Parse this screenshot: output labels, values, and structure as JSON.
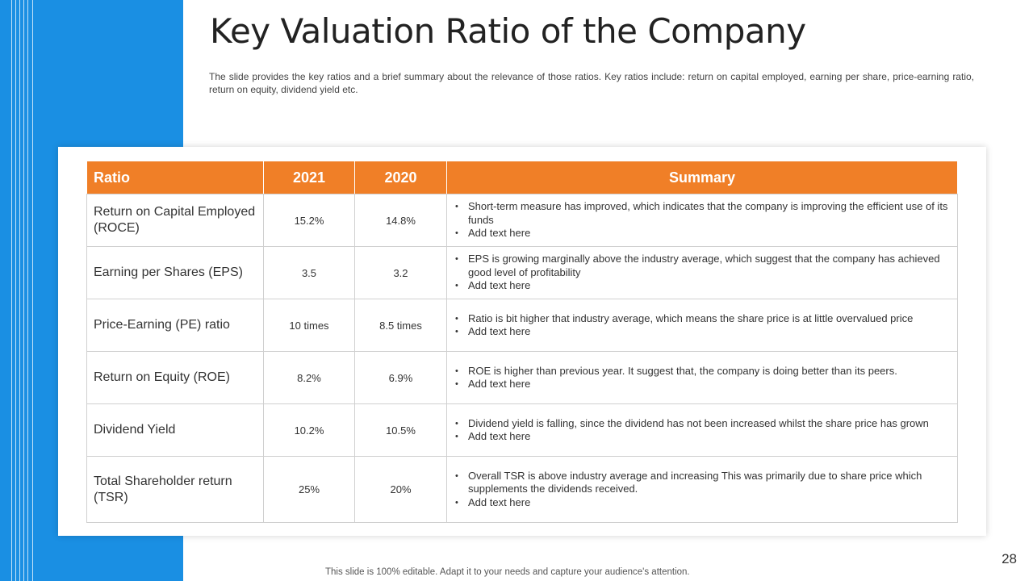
{
  "slide": {
    "title": "Key Valuation Ratio of the Company",
    "description": "The slide provides the key ratios and a brief summary about the relevance of those ratios. Key ratios include: return on capital employed, earning per share, price-earning ratio, return on equity, dividend yield etc.",
    "page_number": "28",
    "footer_note": "This slide is 100% editable. Adapt it to your needs and capture your audience's attention.",
    "colors": {
      "accent_orange": "#f07f27",
      "band_blue": "#1a8fe3"
    }
  },
  "table": {
    "headers": [
      "Ratio",
      "2021",
      "2020",
      "Summary"
    ],
    "rows": [
      {
        "name": "Return on Capital Employed (ROCE)",
        "y2021": "15.2%",
        "y2020": "14.8%",
        "summary": [
          "Short-term measure has improved, which indicates that the company is improving the efficient use of its funds",
          "Add text here"
        ]
      },
      {
        "name": "Earning per Shares (EPS)",
        "y2021": "3.5",
        "y2020": "3.2",
        "summary": [
          "EPS is growing marginally above the industry average, which suggest that the company has achieved good level of profitability",
          "Add text here"
        ]
      },
      {
        "name": "Price-Earning (PE) ratio",
        "y2021": "10 times",
        "y2020": "8.5 times",
        "summary": [
          "Ratio is bit higher that industry average, which means the share price is at little overvalued price",
          "Add text here"
        ]
      },
      {
        "name": "Return on Equity (ROE)",
        "y2021": "8.2%",
        "y2020": "6.9%",
        "summary": [
          "ROE is higher than previous year. It suggest that, the company is doing better than its peers.",
          "Add text here"
        ]
      },
      {
        "name": "Dividend Yield",
        "y2021": "10.2%",
        "y2020": "10.5%",
        "summary": [
          "Dividend yield is falling, since the dividend has not been increased whilst the share price has grown",
          "Add text here"
        ]
      },
      {
        "name": "Total Shareholder return (TSR)",
        "y2021": "25%",
        "y2020": "20%",
        "summary": [
          "Overall TSR is above industry average and increasing This was primarily due to share price which supplements the dividends received.",
          "Add text here"
        ]
      }
    ]
  }
}
